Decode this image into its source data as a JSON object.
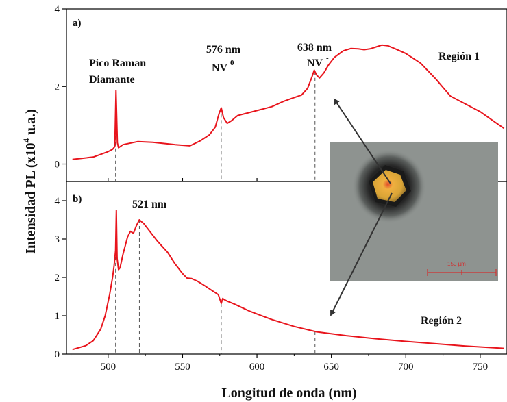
{
  "chart_data": {
    "type": "line",
    "xlabel": "Longitud de onda (nm)",
    "ylabel": {
      "prefix": "Intensidad PL (x10",
      "exponent": "4",
      "suffix": " u.a.)"
    },
    "xlim": [
      472,
      768
    ],
    "xticks": [
      500,
      550,
      600,
      650,
      700,
      750
    ],
    "colors": {
      "line": "#e8141c",
      "axis": "#000000",
      "guide": "#555555",
      "arrow": "#333333"
    },
    "panels": [
      {
        "label": "a)",
        "ylim": [
          -0.45,
          4.0
        ],
        "yticks": [
          0,
          2,
          4
        ],
        "series": [
          {
            "color": "#e8141c",
            "x": [
              476,
              490,
              500,
              503,
              504.5,
              505.3,
              506.2,
              507,
              510,
              520,
              530,
              545,
              555,
              562,
              568,
              572,
              574.5,
              576,
              577.5,
              580,
              583,
              587,
              592,
              600,
              610,
              618,
              624,
              630,
              634,
              637,
              638.5,
              640,
              642,
              645,
              648,
              652,
              658,
              663,
              668,
              672,
              676,
              680,
              684,
              688,
              693,
              700,
              710,
              720,
              730,
              740,
              750,
              760,
              766
            ],
            "y": [
              0.12,
              0.18,
              0.32,
              0.38,
              0.45,
              1.9,
              0.55,
              0.42,
              0.5,
              0.58,
              0.56,
              0.5,
              0.47,
              0.6,
              0.75,
              0.95,
              1.3,
              1.45,
              1.2,
              1.05,
              1.12,
              1.25,
              1.3,
              1.38,
              1.48,
              1.62,
              1.7,
              1.78,
              1.95,
              2.25,
              2.42,
              2.3,
              2.22,
              2.35,
              2.55,
              2.75,
              2.92,
              2.98,
              2.97,
              2.95,
              2.97,
              3.02,
              3.07,
              3.05,
              2.97,
              2.85,
              2.6,
              2.2,
              1.75,
              1.55,
              1.35,
              1.08,
              0.92
            ]
          }
        ],
        "annotations": [
          {
            "lines": [
              "Pico Raman",
              "Diamante"
            ],
            "x": 468,
            "y": 2.6
          },
          {
            "lines": [
              "576 nm",
              "NV"
            ],
            "sup": "0",
            "x": 559,
            "y": 2.9
          },
          {
            "lines": [
              "638 nm",
              "NV"
            ],
            "sup": "-",
            "x": 622,
            "y": 2.93
          },
          {
            "lines": [
              "Región 1"
            ],
            "x": 713,
            "y": 2.75
          }
        ]
      },
      {
        "label": "b)",
        "ylim": [
          0,
          4.5
        ],
        "yticks": [
          0,
          1,
          2,
          3,
          4
        ],
        "series": [
          {
            "color": "#e8141c",
            "x": [
              476,
              485,
              490,
              495,
              498,
              501,
              503,
              504,
              505,
              505.5,
              506,
              507,
              508,
              510,
              513,
              515,
              517,
              519,
              521,
              524,
              528,
              533,
              540,
              545,
              550,
              553,
              556,
              560,
              565,
              570,
              574,
              576,
              577,
              578,
              580,
              585,
              595,
              610,
              625,
              640,
              660,
              680,
              700,
              720,
              740,
              766
            ],
            "y": [
              0.12,
              0.22,
              0.35,
              0.65,
              1.0,
              1.55,
              2.0,
              2.3,
              2.7,
              3.75,
              2.5,
              2.2,
              2.25,
              2.6,
              3.05,
              3.2,
              3.15,
              3.35,
              3.5,
              3.4,
              3.2,
              2.95,
              2.65,
              2.35,
              2.1,
              1.98,
              1.97,
              1.9,
              1.78,
              1.65,
              1.55,
              1.32,
              1.45,
              1.42,
              1.38,
              1.3,
              1.12,
              0.9,
              0.72,
              0.58,
              0.48,
              0.4,
              0.33,
              0.27,
              0.21,
              0.15
            ]
          }
        ],
        "annotations": [
          {
            "lines": [
              "521 nm"
            ],
            "x": 527,
            "y": 3.7
          },
          {
            "lines": [
              "Región 2"
            ],
            "x": 660,
            "y": 0.43
          }
        ]
      }
    ],
    "guides": [
      {
        "x": 505,
        "panels": [
          "a",
          "b"
        ]
      },
      {
        "x": 576,
        "panels": [
          "a",
          "b"
        ]
      },
      {
        "x": 639,
        "panels": [
          "a",
          "b"
        ]
      },
      {
        "x": 521,
        "panels": [
          "b"
        ]
      }
    ],
    "inset": {
      "description_label": "150 µm",
      "background": "#8e9390",
      "crystal_color": "#d99a2b"
    }
  }
}
